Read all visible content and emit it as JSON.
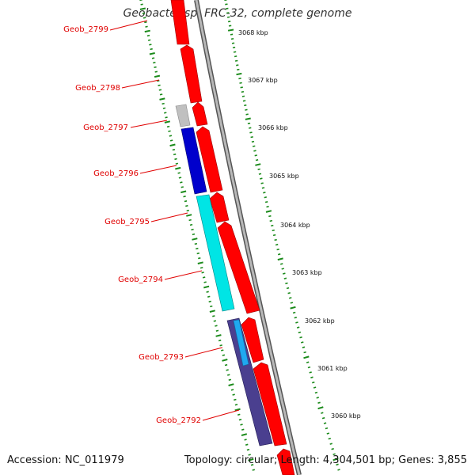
{
  "title": "Geobacter sp. FRC-32, complete genome",
  "footer": {
    "accession": "Accession: NC_011979",
    "summary": "Topology: circular; Length: 4,304,501 bp; Genes: 3,855"
  },
  "colors": {
    "gene_label": "#e00000",
    "forward_cds": "#ff0000",
    "backbone": "#888888",
    "tick": "#1a8a1a"
  },
  "gene_labels": [
    {
      "id": "Geob_2799",
      "text": "Geob_2799"
    },
    {
      "id": "Geob_2798",
      "text": "Geob_2798"
    },
    {
      "id": "Geob_2797",
      "text": "Geob_2797"
    },
    {
      "id": "Geob_2796",
      "text": "Geob_2796"
    },
    {
      "id": "Geob_2795",
      "text": "Geob_2795"
    },
    {
      "id": "Geob_2794",
      "text": "Geob_2794"
    },
    {
      "id": "Geob_2793",
      "text": "Geob_2793"
    },
    {
      "id": "Geob_2792",
      "text": "Geob_2792"
    }
  ],
  "kbp_labels": [
    "3068 kbp",
    "3067 kbp",
    "3066 kbp",
    "3065 kbp",
    "3064 kbp",
    "3063 kbp",
    "3062 kbp",
    "3061 kbp",
    "3060 kbp"
  ],
  "reverse_features": [
    {
      "name": "grey-feature",
      "color": "#c0c0c0"
    },
    {
      "name": "blue-feature",
      "color": "#0000cc"
    },
    {
      "name": "cyan-feature",
      "color": "#00e5e5"
    },
    {
      "name": "navy-feature",
      "color": "#4a3f8f"
    },
    {
      "name": "skyblue-feature",
      "color": "#1fa9f0"
    }
  ]
}
